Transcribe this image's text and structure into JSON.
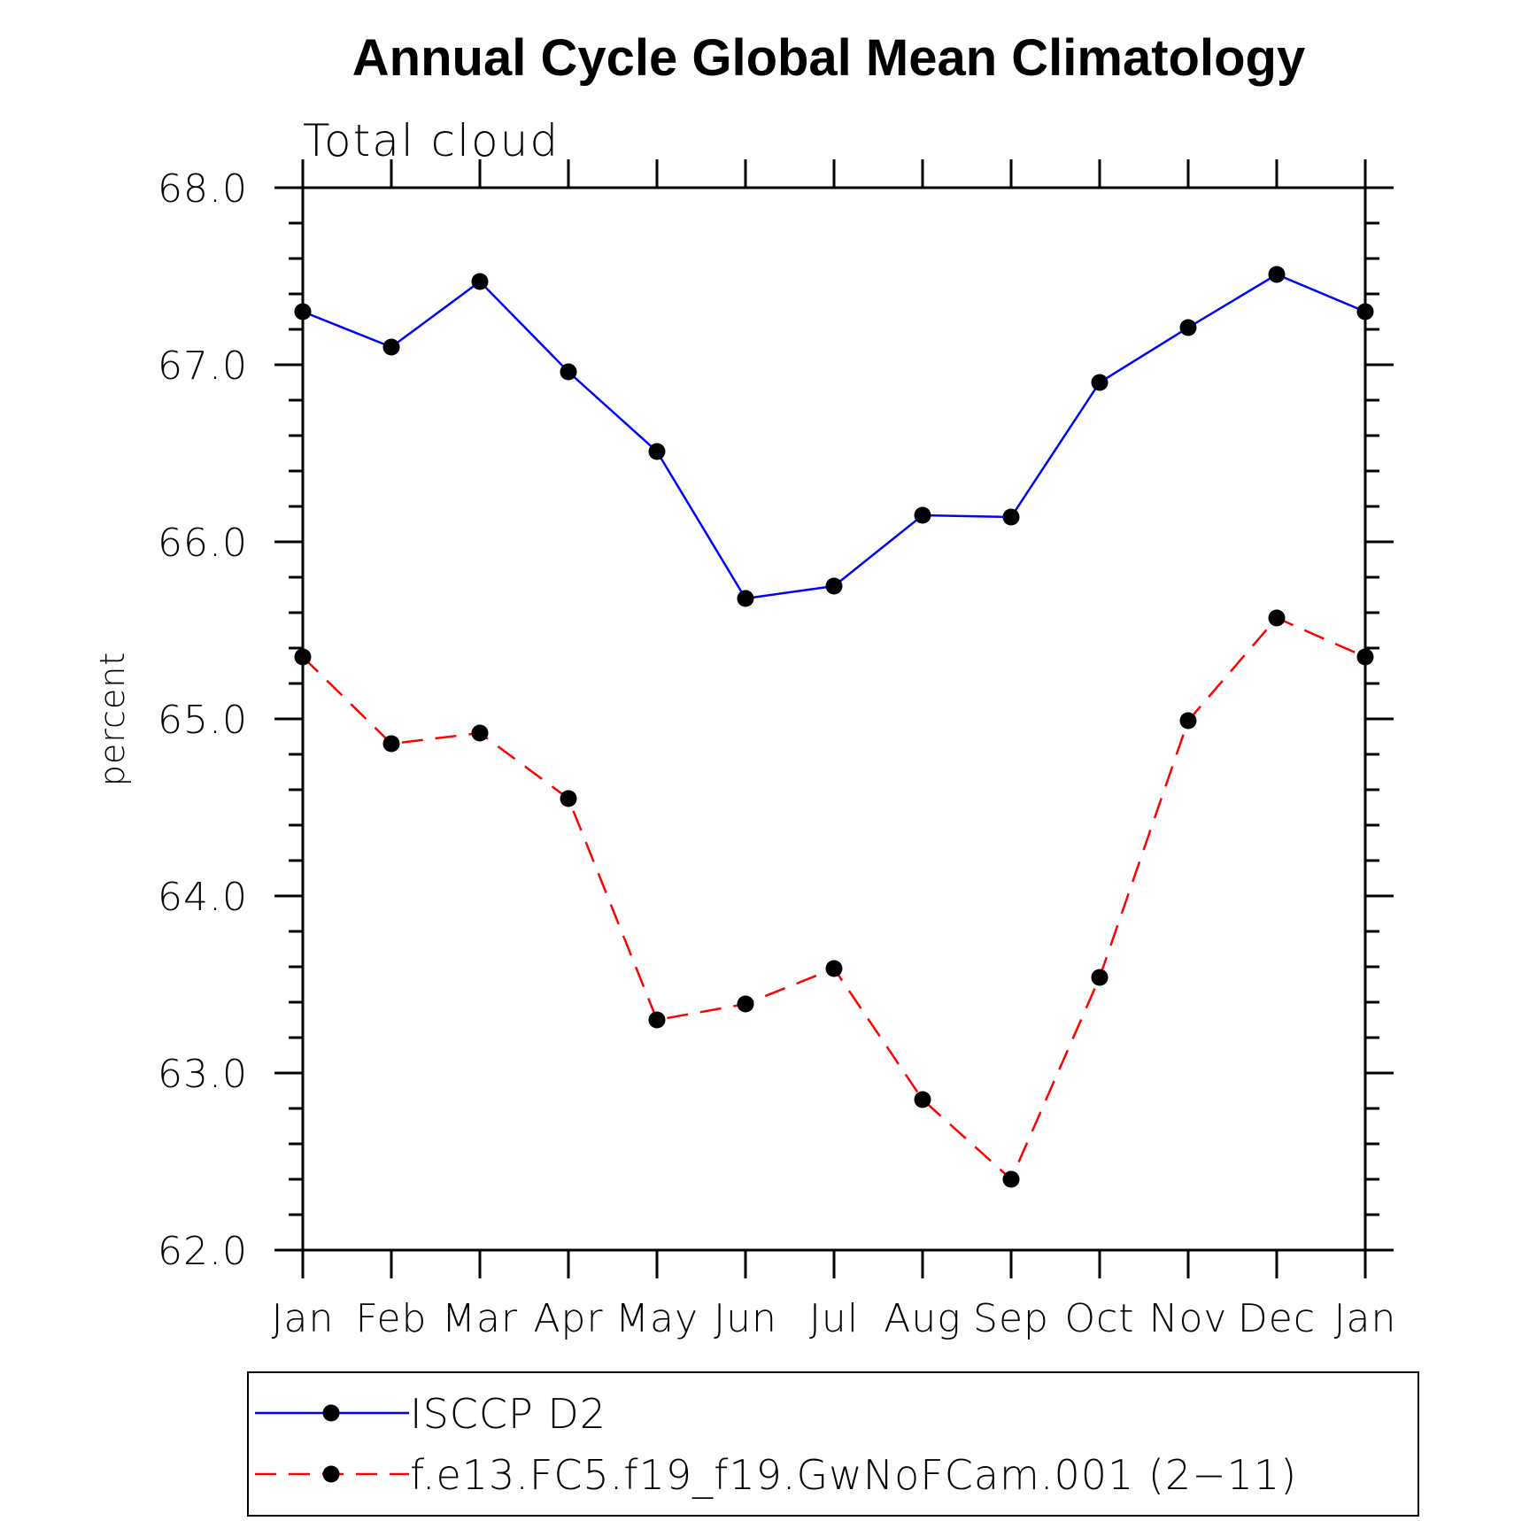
{
  "chart_data": {
    "type": "line",
    "title": "Annual Cycle Global Mean Climatology",
    "subtitle": "Total cloud",
    "xlabel": "",
    "ylabel": "percent",
    "categories": [
      "Jan",
      "Feb",
      "Mar",
      "Apr",
      "May",
      "Jun",
      "Jul",
      "Aug",
      "Sep",
      "Oct",
      "Nov",
      "Dec",
      "Jan"
    ],
    "ylim": [
      62.0,
      68.0
    ],
    "yticks": [
      "62.0",
      "63.0",
      "64.0",
      "65.0",
      "66.0",
      "67.0",
      "68.0"
    ],
    "grid": false,
    "legend_position": "bottom",
    "series": [
      {
        "name": "ISCCP D2",
        "color": "#0000ff",
        "dash": "solid",
        "marker": "filled-circle",
        "values": [
          67.3,
          67.1,
          67.47,
          66.96,
          66.51,
          65.68,
          65.75,
          66.15,
          66.14,
          66.9,
          67.21,
          67.51,
          67.3
        ]
      },
      {
        "name": "f.e13.FC5.f19_f19.GwNoFCam.001 (2−11)",
        "color": "#ff0000",
        "dash": "dashed",
        "marker": "filled-circle",
        "values": [
          65.35,
          64.86,
          64.92,
          64.55,
          63.3,
          63.39,
          63.59,
          62.85,
          62.4,
          63.54,
          64.99,
          65.57,
          65.35
        ]
      }
    ]
  }
}
